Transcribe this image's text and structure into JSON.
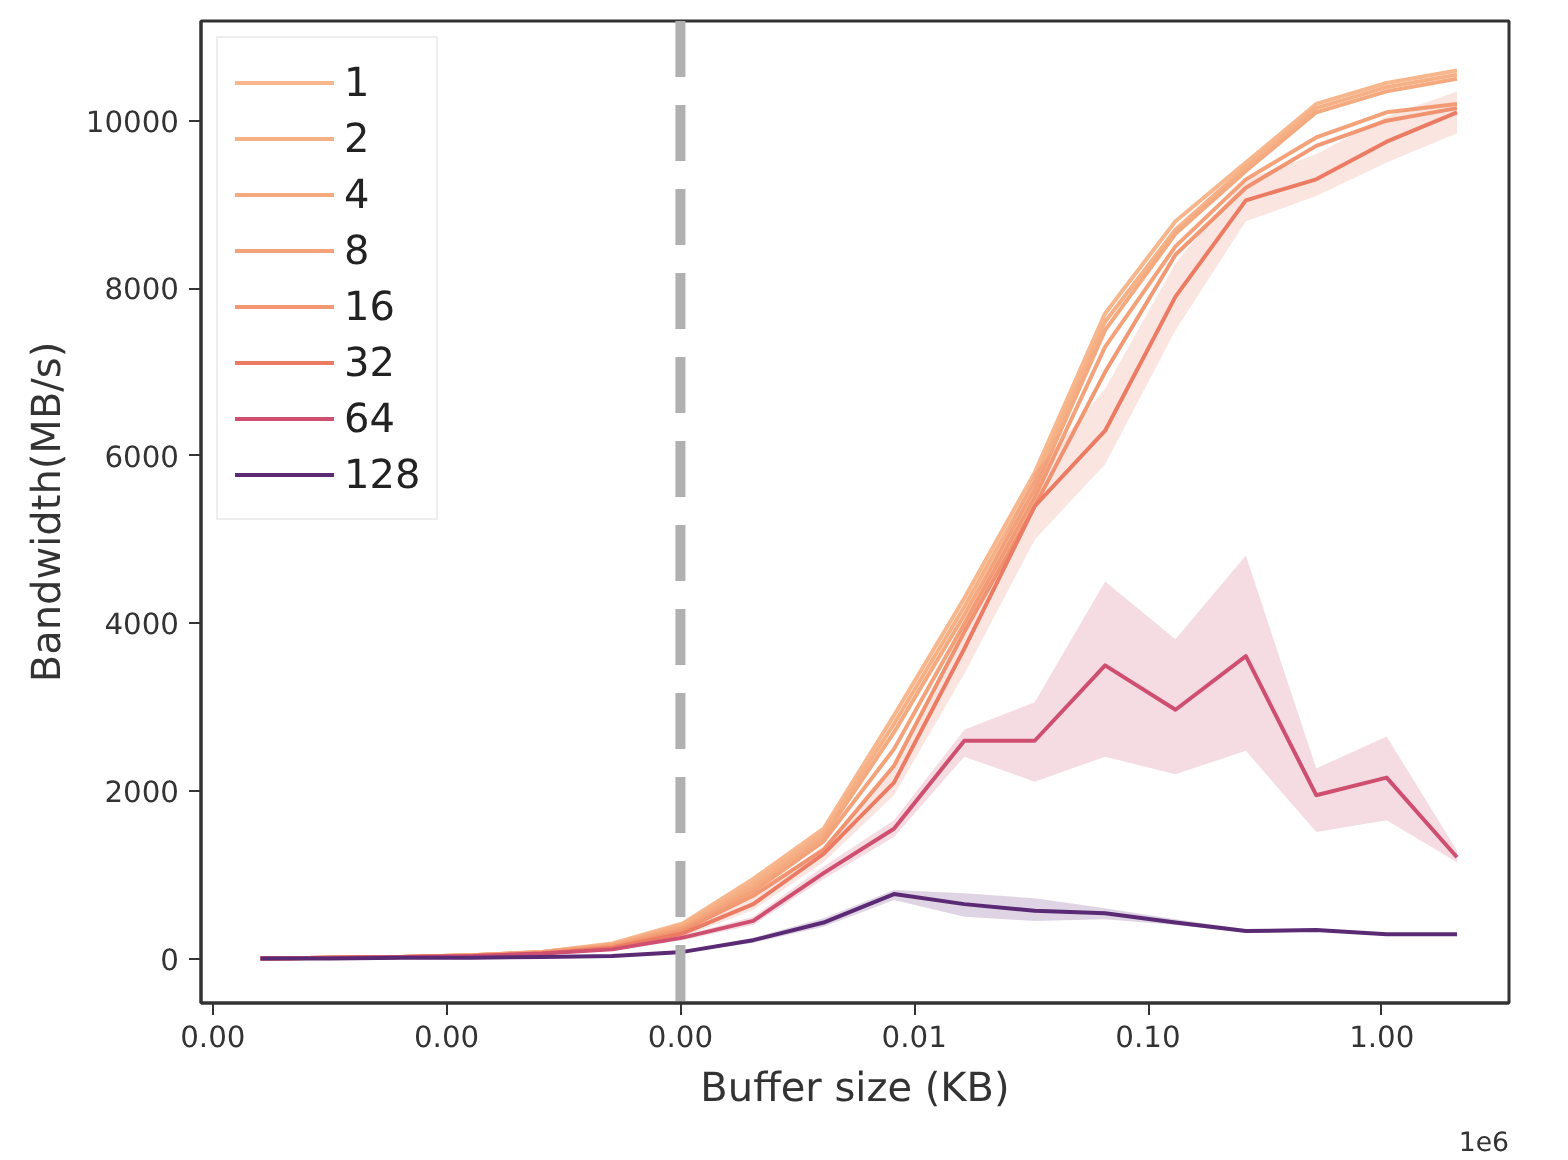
{
  "chart_data": {
    "type": "line",
    "xlabel": "Buffer size (KB)",
    "ylabel": "Bandwidth(MB/s)",
    "log": "x",
    "grid": false,
    "legend": "top left",
    "line_style": "solid",
    "marker": "none",
    "annotations": [
      "1e6"
    ],
    "x": [
      1.6e-05,
      3.2e-05,
      6.4e-05,
      0.000128,
      0.000256,
      0.000512,
      0.001024,
      0.002048,
      0.004096,
      0.008192,
      0.016384,
      0.032768,
      0.065536,
      0.131072,
      0.262144,
      0.524288,
      1.048576,
      2.097152
    ],
    "xlim": [
      8.9e-06,
      3.5
    ],
    "ylim": [
      -530,
      11190
    ],
    "xticks": [
      {
        "value": 1e-05,
        "label": "0.00"
      },
      {
        "value": 0.0001,
        "label": "0.00"
      },
      {
        "value": 0.001,
        "label": "0.00"
      },
      {
        "value": 0.01,
        "label": "0.01"
      },
      {
        "value": 0.1,
        "label": "0.10"
      },
      {
        "value": 1,
        "label": "1.00"
      }
    ],
    "yticks": [
      0,
      2000,
      4000,
      6000,
      8000,
      10000
    ],
    "ref_lines": [
      {
        "axis": "x",
        "value": 0.001,
        "label": null,
        "color": "#b0b0b0",
        "line_style": "dashed"
      }
    ],
    "series": [
      {
        "name": "1",
        "color": "#f7b68b",
        "values": [
          0,
          10,
          20,
          40,
          80,
          180,
          420,
          950,
          1550,
          2900,
          4300,
          5800,
          7700,
          8800,
          9500,
          10200,
          10450,
          10600
        ]
      },
      {
        "name": "2",
        "color": "#f6b086",
        "values": [
          0,
          10,
          20,
          40,
          80,
          170,
          400,
          900,
          1500,
          2800,
          4200,
          5700,
          7600,
          8700,
          9450,
          10150,
          10400,
          10550
        ]
      },
      {
        "name": "4",
        "color": "#f5a97f",
        "values": [
          0,
          10,
          20,
          40,
          80,
          160,
          380,
          850,
          1450,
          2700,
          4100,
          5600,
          7500,
          8650,
          9400,
          10100,
          10350,
          10500
        ]
      },
      {
        "name": "8",
        "color": "#f4a279",
        "values": [
          0,
          10,
          20,
          40,
          70,
          150,
          360,
          800,
          1400,
          2500,
          4000,
          5500,
          7300,
          8500,
          9300,
          9800,
          10100,
          10200
        ]
      },
      {
        "name": "16",
        "color": "#f29872",
        "values": [
          0,
          10,
          20,
          30,
          70,
          140,
          340,
          750,
          1300,
          2300,
          3900,
          5400,
          7000,
          8400,
          9200,
          9700,
          10000,
          10150
        ]
      },
      {
        "name": "32",
        "color": "#ec7b63",
        "values": [
          0,
          10,
          20,
          30,
          60,
          130,
          300,
          650,
          1250,
          2100,
          3700,
          5400,
          6300,
          7900,
          9050,
          9300,
          9750,
          10100
        ],
        "lower": [
          0,
          10,
          20,
          30,
          50,
          110,
          260,
          580,
          1150,
          1950,
          3400,
          5000,
          5900,
          7500,
          8800,
          9100,
          9500,
          9850
        ],
        "upper": [
          0,
          10,
          20,
          40,
          70,
          150,
          340,
          720,
          1350,
          2250,
          4000,
          5800,
          6800,
          8300,
          9300,
          9600,
          10050,
          10350
        ]
      },
      {
        "name": "64",
        "color": "#cf4f70",
        "values": [
          0,
          10,
          20,
          30,
          60,
          110,
          250,
          450,
          1020,
          1550,
          2600,
          2600,
          3500,
          2970,
          3610,
          1950,
          2160,
          1210
        ],
        "lower": [
          0,
          10,
          20,
          30,
          50,
          100,
          220,
          400,
          950,
          1450,
          2410,
          2110,
          2410,
          2200,
          2480,
          1510,
          1650,
          1150
        ],
        "upper": [
          0,
          10,
          20,
          40,
          70,
          120,
          280,
          500,
          1100,
          1650,
          2730,
          3060,
          4500,
          3810,
          4810,
          2270,
          2650,
          1290
        ]
      },
      {
        "name": "128",
        "color": "#5b2a74",
        "values": [
          0,
          0,
          10,
          10,
          20,
          30,
          80,
          220,
          430,
          770,
          650,
          570,
          540,
          430,
          330,
          340,
          290,
          290
        ],
        "lower": [
          0,
          0,
          10,
          10,
          20,
          30,
          70,
          190,
          380,
          700,
          500,
          450,
          470,
          400,
          310,
          320,
          280,
          280
        ],
        "upper": [
          0,
          0,
          10,
          10,
          20,
          30,
          90,
          250,
          480,
          820,
          780,
          720,
          600,
          470,
          350,
          360,
          300,
          300
        ]
      }
    ]
  }
}
